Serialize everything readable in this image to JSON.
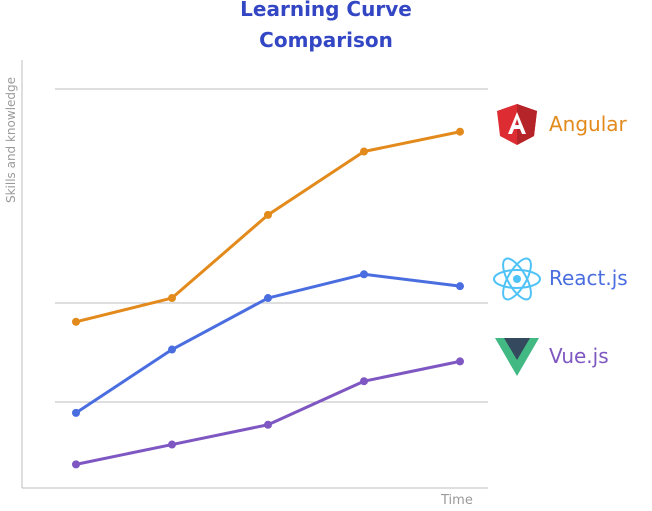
{
  "chart_data": {
    "type": "line",
    "title": "Learning Curve Comparison",
    "title_lines": [
      "Learning Curve",
      "Comparison"
    ],
    "xlabel": "Time",
    "ylabel": "Skills and knowledge",
    "x": [
      1,
      2,
      3,
      4,
      5
    ],
    "ylim": [
      0,
      100
    ],
    "grid": true,
    "legend_placement": "right",
    "series": [
      {
        "name": "Angular",
        "color": "#e38a1c",
        "icon": "angular-logo-icon",
        "values": [
          45,
          51,
          72,
          88,
          93
        ]
      },
      {
        "name": "React.js",
        "color": "#4a6ee0",
        "icon": "react-logo-icon",
        "values": [
          22,
          38,
          51,
          57,
          54
        ]
      },
      {
        "name": "Vue.js",
        "color": "#7e57c2",
        "icon": "vue-logo-icon",
        "values": [
          9,
          14,
          19,
          30,
          35
        ]
      }
    ]
  }
}
